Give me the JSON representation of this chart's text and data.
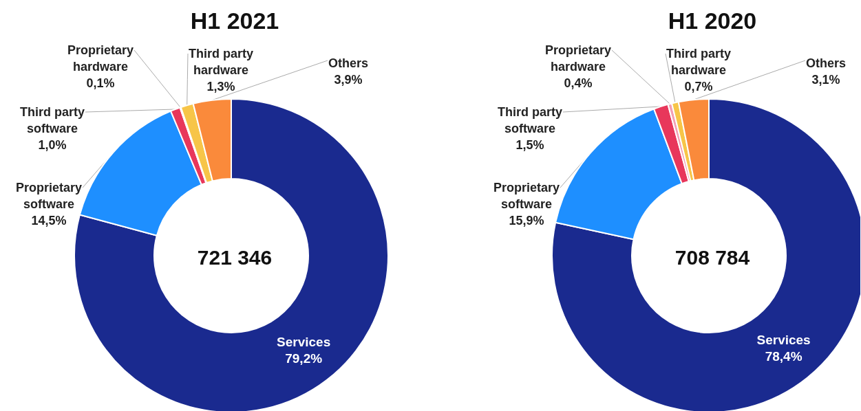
{
  "chart_data": [
    {
      "type": "donut",
      "title": "H1 2021",
      "categories": [
        "Services",
        "Proprietary software",
        "Third party software",
        "Proprietary hardware",
        "Third party hardware",
        "Others"
      ],
      "values": [
        79.2,
        14.5,
        1.0,
        0.1,
        1.3,
        3.9
      ],
      "value_labels": [
        "79,2%",
        "14,5%",
        "1,0%",
        "0,1%",
        "1,3%",
        "3,9%"
      ],
      "colors": [
        "#1a2a8f",
        "#1e8fff",
        "#e8375b",
        "#f3a0b4",
        "#f7c548",
        "#fa8a3b"
      ],
      "annotations": [
        "721 346"
      ]
    },
    {
      "type": "donut",
      "title": "H1 2020",
      "categories": [
        "Services",
        "Proprietary software",
        "Third party software",
        "Proprietary hardware",
        "Third party hardware",
        "Others"
      ],
      "values": [
        78.4,
        15.9,
        1.5,
        0.4,
        0.7,
        3.1
      ],
      "value_labels": [
        "78,4%",
        "15,9%",
        "1,5%",
        "0,4%",
        "0,7%",
        "3,1%"
      ],
      "colors": [
        "#1a2a8f",
        "#1e8fff",
        "#e8375b",
        "#f3a0b4",
        "#f7c548",
        "#fa8a3b"
      ],
      "annotations": [
        "708 784"
      ]
    }
  ]
}
